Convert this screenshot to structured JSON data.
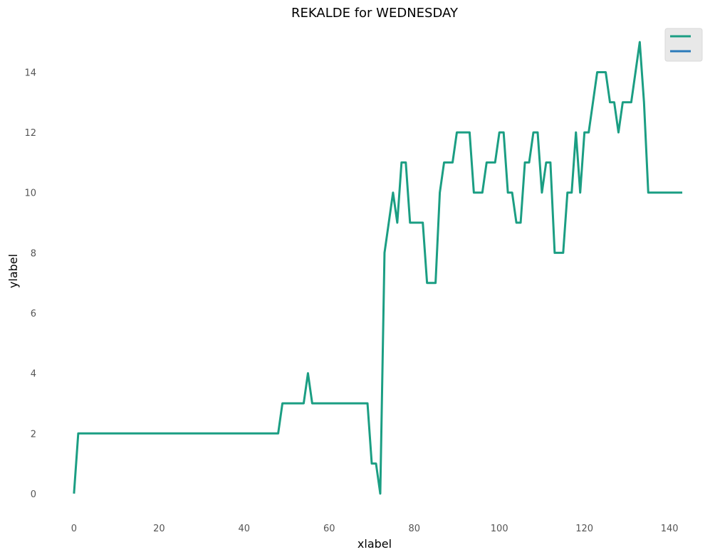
{
  "chart_data": {
    "type": "line",
    "title": "REKALDE for WEDNESDAY",
    "xlabel": "xlabel",
    "ylabel": "ylabel",
    "xlim": [
      -4,
      145
    ],
    "ylim": [
      -0.9,
      15.5
    ],
    "xticks": [
      0,
      20,
      40,
      60,
      80,
      100,
      120,
      140
    ],
    "yticks": [
      0,
      2,
      4,
      6,
      8,
      10,
      12,
      14
    ],
    "grid": false,
    "legend_position": "top-right",
    "series": [
      {
        "color": "#1b9e83",
        "x": [
          0,
          1,
          2,
          3,
          4,
          5,
          6,
          7,
          8,
          9,
          10,
          11,
          12,
          13,
          14,
          15,
          16,
          17,
          18,
          19,
          20,
          21,
          22,
          23,
          24,
          25,
          26,
          27,
          28,
          29,
          30,
          31,
          32,
          33,
          34,
          35,
          36,
          37,
          38,
          39,
          40,
          41,
          42,
          43,
          44,
          45,
          46,
          47,
          48,
          49,
          50,
          51,
          52,
          53,
          54,
          55,
          56,
          57,
          58,
          59,
          60,
          61,
          62,
          63,
          64,
          65,
          66,
          67,
          68,
          69,
          70,
          71,
          72,
          73,
          74,
          75,
          76,
          77,
          78,
          79,
          80,
          81,
          82,
          83,
          84,
          85,
          86,
          87,
          88,
          89,
          90,
          91,
          92,
          93,
          94,
          95,
          96,
          97,
          98,
          99,
          100,
          101,
          102,
          103,
          104,
          105,
          106,
          107,
          108,
          109,
          110,
          111,
          112,
          113,
          114,
          115,
          116,
          117,
          118,
          119,
          120,
          121,
          122,
          123,
          124,
          125,
          126,
          127,
          128,
          129,
          130,
          131,
          132,
          133,
          134,
          135,
          136,
          137,
          138,
          139,
          140,
          141,
          142,
          143
        ],
        "values": [
          0,
          2,
          2,
          2,
          2,
          2,
          2,
          2,
          2,
          2,
          2,
          2,
          2,
          2,
          2,
          2,
          2,
          2,
          2,
          2,
          2,
          2,
          2,
          2,
          2,
          2,
          2,
          2,
          2,
          2,
          2,
          2,
          2,
          2,
          2,
          2,
          2,
          2,
          2,
          2,
          2,
          2,
          2,
          2,
          2,
          2,
          2,
          2,
          2,
          3,
          3,
          3,
          3,
          3,
          3,
          4,
          3,
          3,
          3,
          3,
          3,
          3,
          3,
          3,
          3,
          3,
          3,
          3,
          3,
          3,
          1,
          1,
          0,
          8,
          9,
          10,
          9,
          11,
          11,
          9,
          9,
          9,
          9,
          7,
          7,
          7,
          10,
          11,
          11,
          11,
          12,
          12,
          12,
          12,
          10,
          10,
          10,
          11,
          11,
          11,
          12,
          12,
          10,
          10,
          9,
          9,
          11,
          11,
          12,
          12,
          10,
          11,
          11,
          8,
          8,
          8,
          10,
          10,
          12,
          10,
          12,
          12,
          13,
          14,
          14,
          14,
          13,
          13,
          12,
          13,
          13,
          13,
          14,
          15,
          13,
          10,
          10,
          10,
          10,
          10,
          10,
          10,
          10,
          10
        ]
      },
      {
        "color": "#2b7bba",
        "x": [],
        "values": []
      }
    ]
  }
}
